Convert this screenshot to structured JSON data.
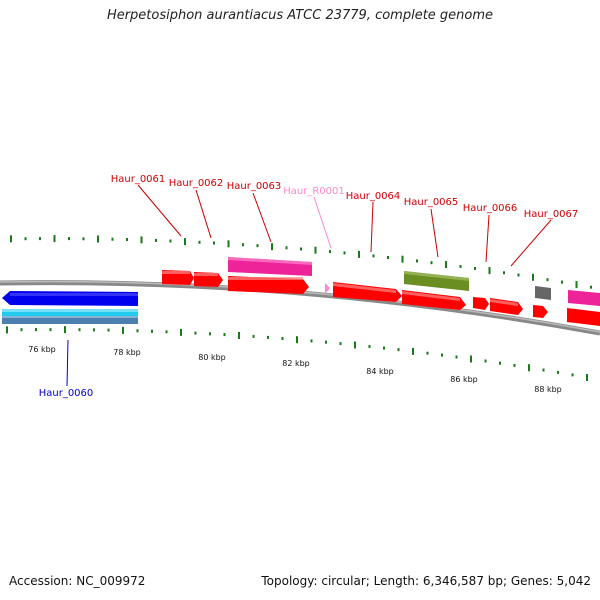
{
  "title": "Herpetosiphon aurantiacus ATCC 23779, complete genome",
  "footer": {
    "accession": "Accession: NC_009972",
    "stats": "Topology: circular; Length: 6,346,587 bp; Genes: 5,042"
  },
  "colors": {
    "cds_forward": "#ff0000",
    "cds_reverse_blue": "#0000ee",
    "cds_reverse_cyan": "#22ccee",
    "rrna_pink": "#ff88cc",
    "gene_magenta": "#ee2299",
    "olive": "#6b8e23",
    "grey": "#666666",
    "tick_green": "#1a7a1a",
    "label_red": "#cc0000",
    "label_blue": "#0000cc",
    "label_pink": "#ff88cc"
  },
  "scale_labels": [
    "76 kbp",
    "78 kbp",
    "80 kbp",
    "82 kbp",
    "84 kbp",
    "86 kbp",
    "88 kbp"
  ],
  "gene_labels": [
    {
      "id": "Haur_0060",
      "color": "blue"
    },
    {
      "id": "Haur_0061",
      "color": "red"
    },
    {
      "id": "Haur_0062",
      "color": "red"
    },
    {
      "id": "Haur_0063",
      "color": "red"
    },
    {
      "id": "Haur_R0001",
      "color": "pink"
    },
    {
      "id": "Haur_0064",
      "color": "red"
    },
    {
      "id": "Haur_0065",
      "color": "red"
    },
    {
      "id": "Haur_0066",
      "color": "red"
    },
    {
      "id": "Haur_0067",
      "color": "red"
    }
  ]
}
